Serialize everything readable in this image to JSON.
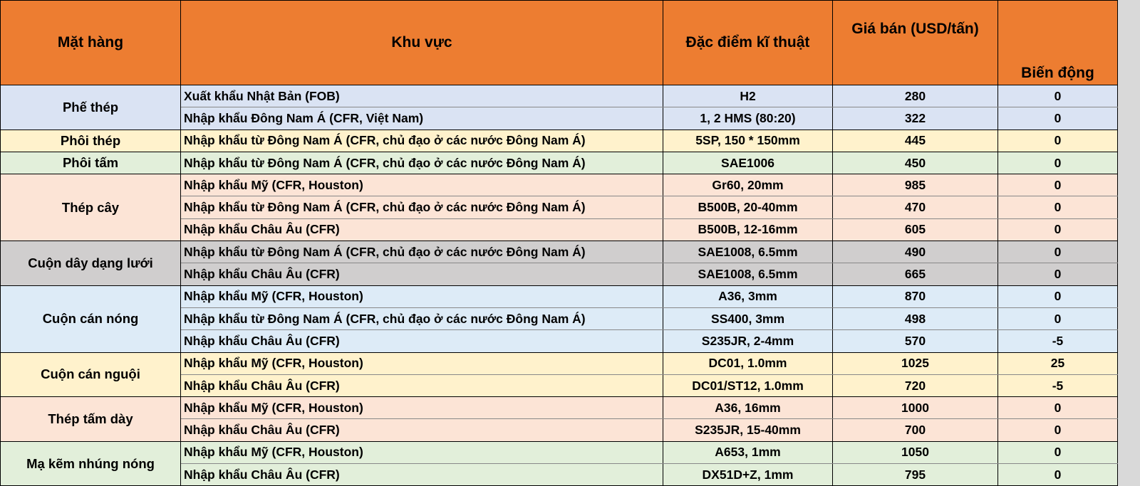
{
  "header": {
    "mat_hang": "Mặt hàng",
    "khu_vuc": "Khu vực",
    "dac_diem": "Đặc điểm kĩ thuật",
    "gia_ban": "Giá bán (USD/tấn)",
    "bien_dong": "Biến động"
  },
  "colors": {
    "header": "#ed7d31"
  },
  "groups": [
    {
      "name": "Phế thép",
      "color": "#dae3f3",
      "rows": [
        {
          "khu_vuc": "Xuất khẩu Nhật Bản (FOB)",
          "dac_diem": "H2",
          "gia": "280",
          "bien_dong": "0"
        },
        {
          "khu_vuc": "Nhập khẩu Đông Nam Á (CFR, Việt Nam)",
          "dac_diem": "1, 2 HMS (80:20)",
          "gia": "322",
          "bien_dong": "0"
        }
      ]
    },
    {
      "name": "Phôi thép",
      "color": "#fff2cc",
      "rows": [
        {
          "khu_vuc": "Nhập khẩu từ Đông Nam Á (CFR, chủ đạo ở các nước Đông Nam Á)",
          "dac_diem": "5SP, 150 * 150mm",
          "gia": "445",
          "bien_dong": "0"
        }
      ]
    },
    {
      "name": "Phôi tấm",
      "color": "#e2efda",
      "rows": [
        {
          "khu_vuc": "Nhập khẩu từ Đông Nam Á (CFR, chủ đạo ở các nước Đông Nam Á)",
          "dac_diem": "SAE1006",
          "gia": "450",
          "bien_dong": "0"
        }
      ]
    },
    {
      "name": "Thép cây",
      "color": "#fce4d6",
      "rows": [
        {
          "khu_vuc": "Nhập khẩu Mỹ (CFR, Houston)",
          "dac_diem": "Gr60, 20mm",
          "gia": "985",
          "bien_dong": "0"
        },
        {
          "khu_vuc": "Nhập khẩu từ Đông Nam Á (CFR, chủ đạo ở các nước Đông Nam Á)",
          "dac_diem": "B500B, 20-40mm",
          "gia": "470",
          "bien_dong": "0"
        },
        {
          "khu_vuc": "Nhập khẩu Châu Âu (CFR)",
          "dac_diem": "B500B, 12-16mm",
          "gia": "605",
          "bien_dong": "0"
        }
      ]
    },
    {
      "name": "Cuộn dây dạng lưới",
      "color": "#d0cece",
      "rows": [
        {
          "khu_vuc": "Nhập khẩu từ Đông Nam Á (CFR, chủ đạo ở các nước Đông Nam Á)",
          "dac_diem": "SAE1008, 6.5mm",
          "gia": "490",
          "bien_dong": "0"
        },
        {
          "khu_vuc": "Nhập khẩu Châu Âu (CFR)",
          "dac_diem": "SAE1008, 6.5mm",
          "gia": "665",
          "bien_dong": "0"
        }
      ]
    },
    {
      "name": "Cuộn cán nóng",
      "color": "#ddebf7",
      "rows": [
        {
          "khu_vuc": "Nhập khẩu Mỹ (CFR, Houston)",
          "dac_diem": "A36, 3mm",
          "gia": "870",
          "bien_dong": "0"
        },
        {
          "khu_vuc": "Nhập khẩu từ Đông Nam Á (CFR, chủ đạo ở các nước Đông Nam Á)",
          "dac_diem": "SS400, 3mm",
          "gia": "498",
          "bien_dong": "0"
        },
        {
          "khu_vuc": "Nhập khẩu Châu Âu (CFR)",
          "dac_diem": "S235JR, 2-4mm",
          "gia": "570",
          "bien_dong": "-5"
        }
      ]
    },
    {
      "name": "Cuộn cán nguội",
      "color": "#fff2cc",
      "rows": [
        {
          "khu_vuc": "Nhập khẩu Mỹ (CFR, Houston)",
          "dac_diem": "DC01, 1.0mm",
          "gia": "1025",
          "bien_dong": "25"
        },
        {
          "khu_vuc": "Nhập khẩu Châu Âu (CFR)",
          "dac_diem": "DC01/ST12, 1.0mm",
          "gia": "720",
          "bien_dong": "-5"
        }
      ]
    },
    {
      "name": "Thép tấm dày",
      "color": "#fce4d6",
      "rows": [
        {
          "khu_vuc": "Nhập khẩu Mỹ (CFR, Houston)",
          "dac_diem": "A36, 16mm",
          "gia": "1000",
          "bien_dong": "0"
        },
        {
          "khu_vuc": "Nhập khẩu Châu Âu (CFR)",
          "dac_diem": "S235JR, 15-40mm",
          "gia": "700",
          "bien_dong": "0"
        }
      ]
    },
    {
      "name": "Mạ kẽm nhúng nóng",
      "color": "#e2efda",
      "rows": [
        {
          "khu_vuc": "Nhập khẩu Mỹ (CFR, Houston)",
          "dac_diem": "A653, 1mm",
          "gia": "1050",
          "bien_dong": "0"
        },
        {
          "khu_vuc": "Nhập khẩu Châu Âu (CFR)",
          "dac_diem": "DX51D+Z, 1mm",
          "gia": "795",
          "bien_dong": "0"
        }
      ]
    }
  ]
}
